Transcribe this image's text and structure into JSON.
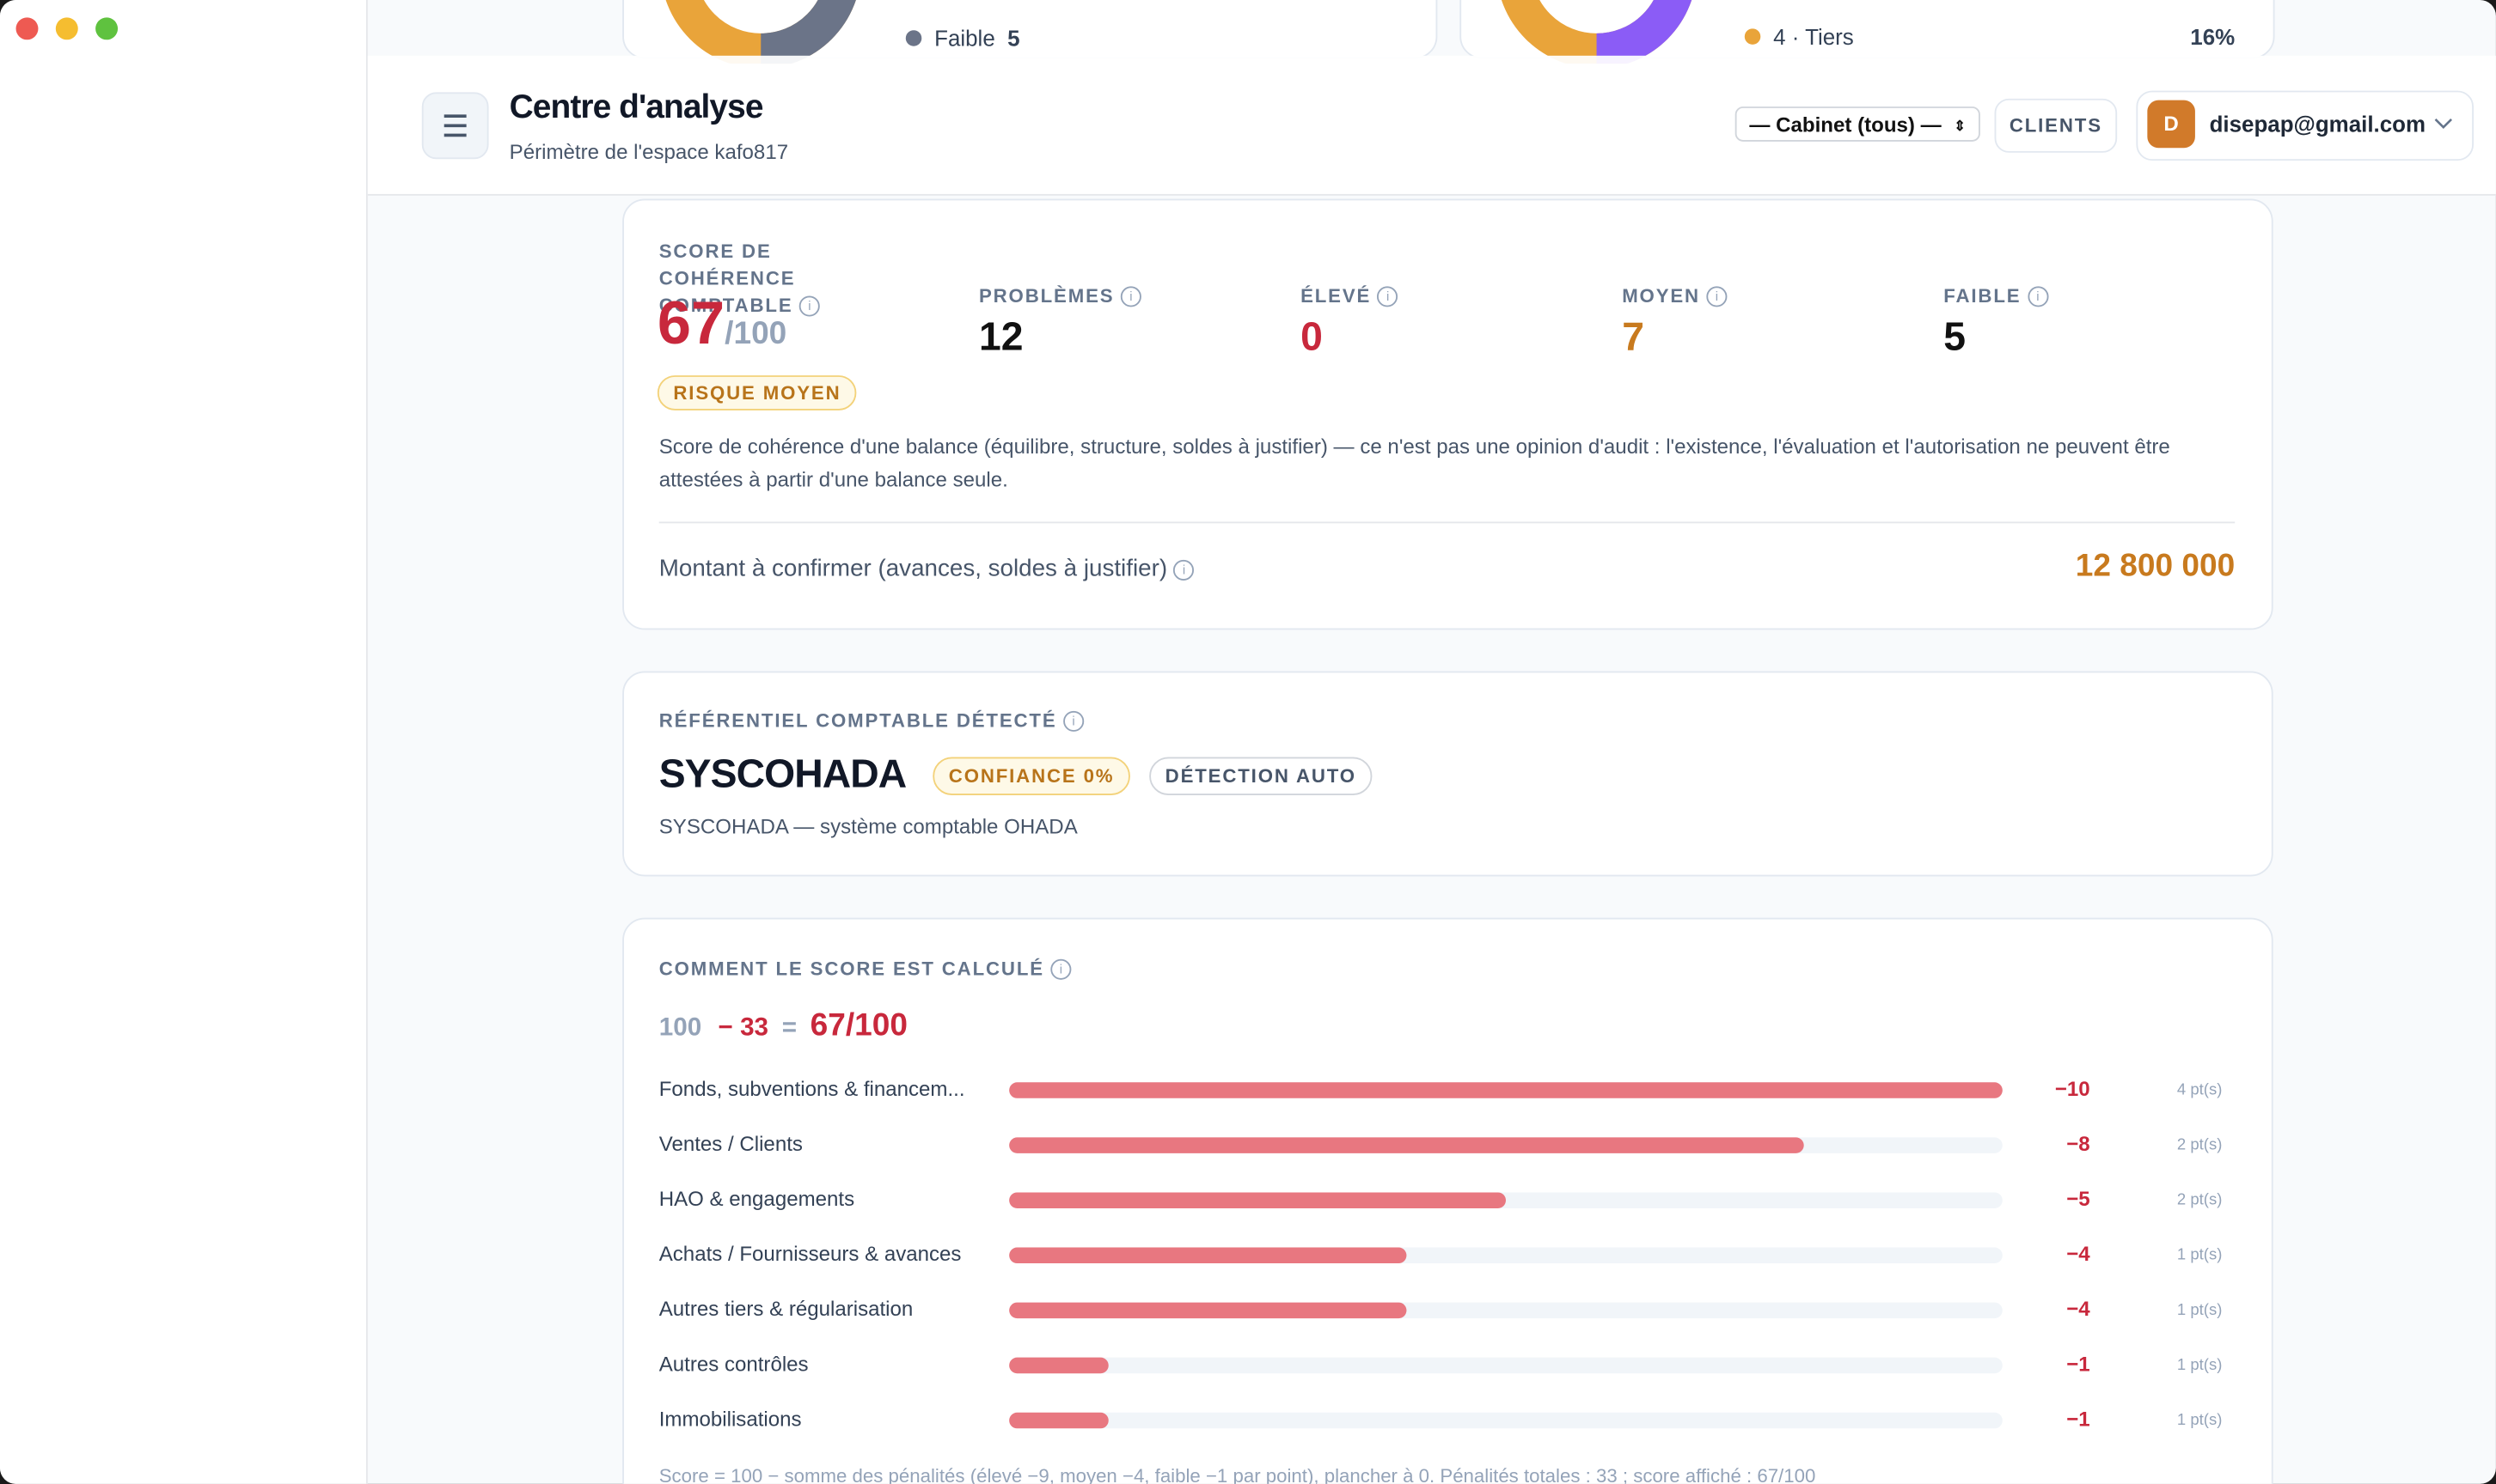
{
  "header": {
    "title": "Centre d'analyse",
    "subtitle": "Périmètre de l'espace kafo817",
    "cabinet": "— Cabinet (tous) —",
    "clients": "CLIENTS",
    "avatar": "D",
    "email": "disepap@gmail.com"
  },
  "top_partial": {
    "legend_left": [
      {
        "label": "Faible",
        "value": "5"
      }
    ],
    "legend_right": [
      {
        "label": "4 · Tiers",
        "value": "16%"
      }
    ]
  },
  "score_card": {
    "label": "SCORE DE COHÉRENCE COMPTABLE",
    "score": "67",
    "max": "/100",
    "risk": "RISQUE MOYEN",
    "stats": [
      {
        "label": "PROBLÈMES",
        "value": "12"
      },
      {
        "label": "ÉLEVÉ",
        "value": "0"
      },
      {
        "label": "MOYEN",
        "value": "7"
      },
      {
        "label": "FAIBLE",
        "value": "5"
      }
    ],
    "note": "Score de cohérence d'une balance (équilibre, structure, soldes à justifier) — ce n'est pas une opinion d'audit : l'existence, l'évaluation et l'autorisation ne peuvent être attestées à partir d'une balance seule.",
    "amount_label": "Montant à confirmer (avances, soldes à justifier)",
    "amount": "12 800 000"
  },
  "referentiel": {
    "label": "RÉFÉRENTIEL COMPTABLE DÉTECTÉ",
    "name": "SYSCOHADA",
    "confidence": "CONFIANCE 0%",
    "detection": "DÉTECTION AUTO",
    "description": "SYSCOHADA — système comptable OHADA"
  },
  "calc": {
    "label": "COMMENT LE SCORE EST CALCULÉ",
    "base": "100",
    "minus": "− 33",
    "eq": "=",
    "result": "67/100",
    "chart_data": {
      "type": "bar",
      "categories": [
        "Fonds, subventions & financem...",
        "Ventes / Clients",
        "HAO & engagements",
        "Achats / Fournisseurs & avances",
        "Autres tiers & régularisation",
        "Autres contrôles",
        "Immobilisations"
      ],
      "values": [
        -10,
        -8,
        -5,
        -4,
        -4,
        -1,
        -1
      ],
      "value_labels": [
        "−10",
        "−8",
        "−5",
        "−4",
        "−4",
        "−1",
        "−1"
      ],
      "counts": [
        "4 pt(s)",
        "2 pt(s)",
        "2 pt(s)",
        "1 pt(s)",
        "1 pt(s)",
        "1 pt(s)",
        "1 pt(s)"
      ],
      "xlim": [
        0,
        -10
      ],
      "color": "#e87780"
    },
    "footnote": "Score = 100 − somme des pénalités (élevé −9, moyen −4, faible −1 par point), plancher à 0. Pénalités totales : 33 ; score affiché : 67/100"
  }
}
